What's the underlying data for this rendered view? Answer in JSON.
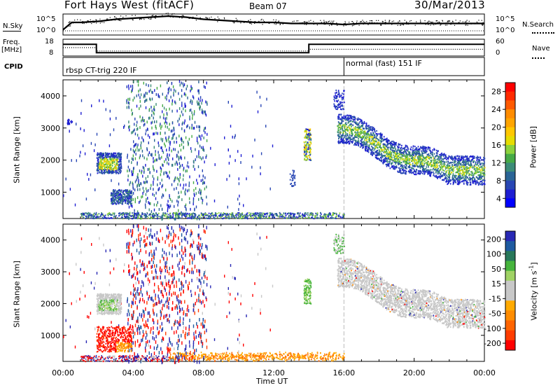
{
  "header": {
    "title": "Fort Hays West (fitACF)",
    "beam": "Beam 07",
    "date": "30/Mar/2013"
  },
  "scan_panels": {
    "nsky_label": "N.Sky",
    "nsky_ticks": [
      "10^5",
      "10^0"
    ],
    "nsearch_label": "N.Search",
    "nsearch_ticks": [
      "10^5",
      "10^0"
    ],
    "freq_label": "Freq.",
    "freq_unit": "[MHz]",
    "freq_ticks": [
      "18",
      "8"
    ],
    "nave_label": "Nave",
    "nave_ticks": [
      "60",
      "0"
    ],
    "cpid_label": "CPID",
    "cpid_segments": [
      "rbsp CT-trig 220 IF",
      "normal (fast) 151 IF"
    ]
  },
  "colorbars": {
    "power": {
      "label": "Power [dB]",
      "ticks": [
        "28",
        "24",
        "20",
        "16",
        "12",
        "8",
        "4"
      ],
      "colors": [
        "#ff0000",
        "#ff2a00",
        "#ff5a00",
        "#ff8c00",
        "#ffa500",
        "#ffc700",
        "#e6dc00",
        "#8cd23c",
        "#46aa46",
        "#3c8c78",
        "#2a6496",
        "#2846b4",
        "#1e1ed2",
        "#0000ff"
      ]
    },
    "velocity": {
      "label_text": "Velocity [m s",
      "label_sup": "-1",
      "label_end": "]",
      "ticks": [
        "200",
        "100",
        "50",
        "15",
        "-15",
        "-50",
        "-100",
        "-200"
      ],
      "colors": [
        "#2828b4",
        "#1e5aa0",
        "#28785a",
        "#46b43c",
        "#a0d264",
        "#c8c8c8",
        "#c8c8c8",
        "#ffaa00",
        "#ff8c00",
        "#ff6400",
        "#ff3c00",
        "#ff0000"
      ]
    }
  },
  "chart_data": {
    "type": "heatmap",
    "x_ticks": [
      "00:00",
      "04:00",
      "08:00",
      "12:00",
      "16:00",
      "20:00",
      "00:00"
    ],
    "xlabel": "Time UT",
    "ylabel": "Slant Range [km]",
    "y_ticks": [
      "1000",
      "2000",
      "3000",
      "4000"
    ],
    "xlim_hours": [
      0,
      24
    ],
    "ylim_km": [
      180,
      4500
    ],
    "mode_change_hour": 16,
    "nsky_trace": [
      [
        0,
        0.25
      ],
      [
        0.5,
        0.6
      ],
      [
        1,
        0.6
      ],
      [
        2,
        0.65
      ],
      [
        3,
        0.75
      ],
      [
        4,
        0.8
      ],
      [
        5,
        0.85
      ],
      [
        6,
        0.9
      ],
      [
        7,
        0.85
      ],
      [
        8,
        0.75
      ],
      [
        9,
        0.7
      ],
      [
        10,
        0.65
      ],
      [
        11,
        0.6
      ],
      [
        12,
        0.6
      ],
      [
        13,
        0.55
      ],
      [
        14,
        0.55
      ],
      [
        15,
        0.55
      ],
      [
        16,
        0.5
      ],
      [
        17,
        0.55
      ],
      [
        18,
        0.55
      ],
      [
        20,
        0.55
      ],
      [
        22,
        0.55
      ],
      [
        24,
        0.55
      ]
    ],
    "frequency_mhz": [
      [
        0,
        15
      ],
      [
        1.9,
        15
      ],
      [
        1.9,
        10
      ],
      [
        14,
        10
      ],
      [
        14,
        15
      ],
      [
        24,
        15
      ]
    ],
    "nave": [
      [
        0,
        30
      ],
      [
        1.9,
        30
      ],
      [
        1.9,
        18
      ],
      [
        14,
        18
      ],
      [
        14,
        24
      ],
      [
        24,
        24
      ]
    ],
    "power_features": [
      {
        "t": [
          1.9,
          3.3
        ],
        "r": [
          1600,
          2250
        ],
        "level": "20-24 dB core"
      },
      {
        "t": [
          2.7,
          3.9
        ],
        "r": [
          650,
          1100
        ],
        "level": "4-12 dB"
      },
      {
        "t": [
          13.7,
          14.1
        ],
        "r": [
          2000,
          3000
        ],
        "level": "16-24 dB"
      },
      {
        "t": [
          15.6,
          24
        ],
        "r": [
          1500,
          3000
        ],
        "level": "4-20 dB"
      }
    ],
    "velocity_features": [
      {
        "t": [
          1.9,
          3.3
        ],
        "r": [
          1700,
          2300
        ],
        "level": "-15 to 15 m/s with 15-50 m/s core"
      },
      {
        "t": [
          1.9,
          3.9
        ],
        "r": [
          500,
          1300
        ],
        "level": "-200 to -100 m/s"
      },
      {
        "t": [
          13.7,
          14.1
        ],
        "r": [
          2000,
          2800
        ],
        "level": "15-50 m/s"
      },
      {
        "t": [
          15.6,
          24
        ],
        "r": [
          1500,
          3000
        ],
        "level": "-15 to 15 m/s"
      }
    ]
  }
}
